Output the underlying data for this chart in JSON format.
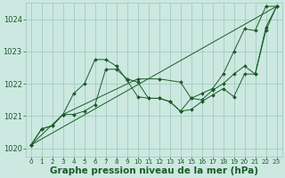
{
  "background_color": "#cce8e0",
  "grid_color": "#99c8bc",
  "line_color": "#1a5c28",
  "marker_color": "#1a5c28",
  "xlabel": "Graphe pression niveau de la mer (hPa)",
  "xlabel_fontsize": 7.5,
  "xlim": [
    -0.5,
    23.5
  ],
  "ylim": [
    1019.75,
    1024.5
  ],
  "yticks": [
    1020,
    1021,
    1022,
    1023,
    1024
  ],
  "xticks": [
    0,
    1,
    2,
    3,
    4,
    5,
    6,
    7,
    8,
    9,
    10,
    11,
    12,
    13,
    14,
    15,
    16,
    17,
    18,
    19,
    20,
    21,
    22,
    23
  ],
  "lines": [
    {
      "x": [
        0,
        1,
        2,
        3,
        4,
        5,
        6,
        7,
        8,
        9,
        10,
        11,
        12,
        13,
        14,
        15,
        16,
        17,
        18,
        19,
        20,
        21,
        22,
        23
      ],
      "y": [
        1020.1,
        1020.6,
        1020.7,
        1021.05,
        1021.7,
        1022.0,
        1022.75,
        1022.75,
        1022.55,
        1022.1,
        1021.6,
        1021.55,
        1021.55,
        1021.45,
        1021.15,
        1021.55,
        1021.7,
        1021.85,
        1022.3,
        1023.0,
        1023.7,
        1023.65,
        1024.4,
        1024.4
      ],
      "has_markers": true
    },
    {
      "x": [
        0,
        1,
        2,
        3,
        4,
        5,
        6,
        7,
        8,
        9,
        10,
        11,
        12,
        13,
        14,
        15,
        16,
        17,
        18,
        19,
        20,
        21,
        22,
        23
      ],
      "y": [
        1020.1,
        1020.6,
        1020.7,
        1021.05,
        1021.05,
        1021.15,
        1021.35,
        1022.45,
        1022.45,
        1022.15,
        1022.05,
        1021.55,
        1021.55,
        1021.45,
        1021.15,
        1021.2,
        1021.45,
        1021.65,
        1021.85,
        1021.6,
        1022.3,
        1022.3,
        1023.75,
        1024.4
      ],
      "has_markers": true
    },
    {
      "x": [
        0,
        3,
        10,
        12,
        14,
        15,
        16,
        17,
        18,
        19,
        20,
        21,
        22,
        23
      ],
      "y": [
        1020.1,
        1021.05,
        1022.15,
        1022.15,
        1022.05,
        1021.55,
        1021.5,
        1021.8,
        1022.0,
        1022.3,
        1022.55,
        1022.3,
        1023.65,
        1024.4
      ],
      "has_markers": true
    },
    {
      "x": [
        0,
        23
      ],
      "y": [
        1020.1,
        1024.4
      ],
      "has_markers": false
    }
  ]
}
